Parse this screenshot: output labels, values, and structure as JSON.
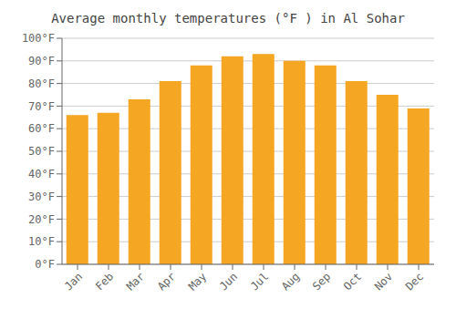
{
  "chart_data": {
    "type": "bar",
    "title": "Average monthly temperatures (°F ) in Al Sohar",
    "categories": [
      "Jan",
      "Feb",
      "Mar",
      "Apr",
      "May",
      "Jun",
      "Jul",
      "Aug",
      "Sep",
      "Oct",
      "Nov",
      "Dec"
    ],
    "values": [
      66,
      67,
      73,
      81,
      88,
      92,
      93,
      90,
      88,
      81,
      75,
      69
    ],
    "color": "#F5A623",
    "ylim": [
      0,
      100
    ],
    "yticks": [
      {
        "value": 0,
        "label": "0°F"
      },
      {
        "value": 10,
        "label": "10°F"
      },
      {
        "value": 20,
        "label": "20°F"
      },
      {
        "value": 30,
        "label": "30°F"
      },
      {
        "value": 40,
        "label": "40°F"
      },
      {
        "value": 50,
        "label": "50°F"
      },
      {
        "value": 60,
        "label": "60°F"
      },
      {
        "value": 70,
        "label": "70°F"
      },
      {
        "value": 80,
        "label": "80°F"
      },
      {
        "value": 90,
        "label": "90°F"
      },
      {
        "value": 100,
        "label": "100°F"
      }
    ],
    "grid": true
  }
}
